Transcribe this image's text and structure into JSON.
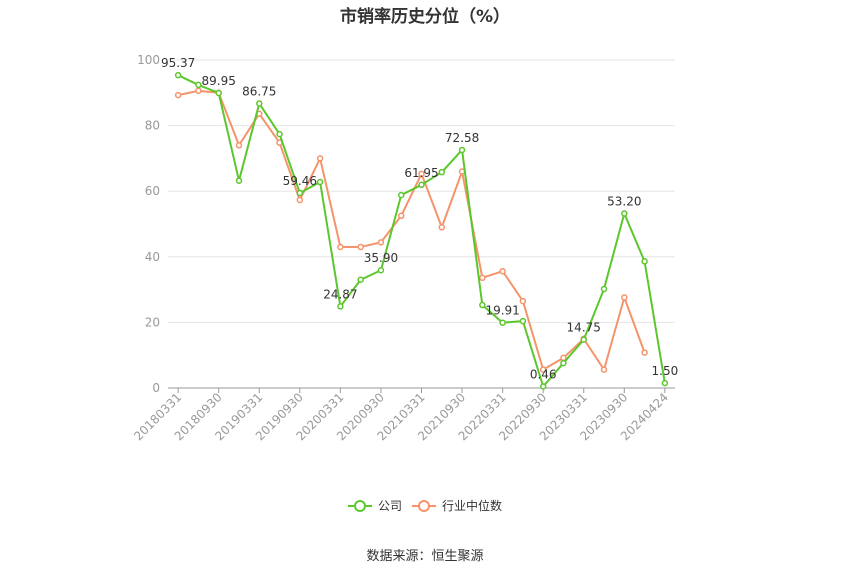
{
  "chart_data": {
    "type": "line",
    "title": "市销率历史分位（%）",
    "x_tick_labels": [
      "20180331",
      "20180930",
      "20190331",
      "20190930",
      "20200331",
      "20200930",
      "20210331",
      "20210930",
      "20220331",
      "20220930",
      "20230331",
      "20230930",
      "20240424"
    ],
    "y_ticks": [
      "0",
      "20",
      "40",
      "60",
      "80",
      "100"
    ],
    "ylim": [
      0,
      100
    ],
    "grid": "horizontal",
    "legend_position": "bottom",
    "series": [
      {
        "name": "公司",
        "color": "#5cc72c",
        "values": [
          95.37,
          92.4,
          89.95,
          63.2,
          86.75,
          77.4,
          59.46,
          62.8,
          24.87,
          33.0,
          35.9,
          58.8,
          61.95,
          65.8,
          72.58,
          25.3,
          19.91,
          20.4,
          0.46,
          7.6,
          14.75,
          30.2,
          53.2,
          38.6,
          1.5
        ],
        "labels": {
          "0": "95.37",
          "2": "89.95",
          "4": "86.75",
          "6": "59.46",
          "8": "24.87",
          "10": "35.90",
          "12": "61.95",
          "14": "72.58",
          "16": "19.91",
          "18": "0.46",
          "20": "14.75",
          "22": "53.20",
          "24": "1.50"
        }
      },
      {
        "name": "行业中位数",
        "color": "#f5936a",
        "values": [
          89.3,
          90.6,
          90.0,
          74.0,
          83.6,
          74.8,
          57.3,
          70.0,
          43.0,
          43.0,
          44.4,
          52.5,
          65.3,
          49.0,
          66.0,
          33.6,
          35.6,
          26.5,
          5.6,
          9.2,
          15.0,
          5.6,
          27.6,
          10.8,
          null
        ]
      }
    ]
  },
  "source_note": "数据来源：恒生聚源"
}
